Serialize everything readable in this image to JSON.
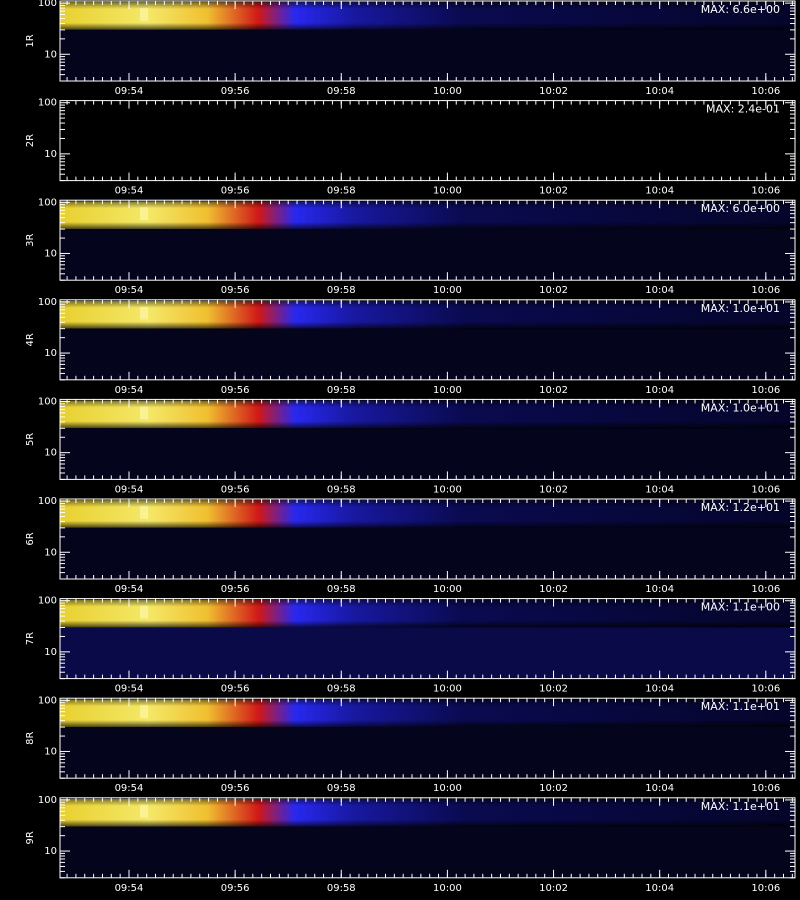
{
  "chart_data": [
    {
      "type": "spectrogram",
      "ylabel": "1R",
      "annotation": "MAX: 6.6e+00",
      "yscale": "log",
      "ylim": [
        3,
        110
      ],
      "yticks": [
        10,
        100
      ],
      "xlim": [
        592.7,
        606.55
      ],
      "xticks": [
        {
          "value": 594,
          "label": "09:54"
        },
        {
          "value": 596,
          "label": "09:56"
        },
        {
          "value": 598,
          "label": "09:58"
        },
        {
          "value": 600,
          "label": "10:00"
        },
        {
          "value": 602,
          "label": "10:02"
        },
        {
          "value": 604,
          "label": "10:04"
        },
        {
          "value": 606,
          "label": "10:06"
        }
      ]
    },
    {
      "type": "spectrogram",
      "ylabel": "2R",
      "annotation": "MAX: 2.4e-01",
      "yscale": "log",
      "ylim": [
        3,
        110
      ],
      "yticks": [
        10,
        100
      ],
      "xlim": [
        592.7,
        606.55
      ],
      "xticks": [
        {
          "value": 594,
          "label": "09:54"
        },
        {
          "value": 596,
          "label": "09:56"
        },
        {
          "value": 598,
          "label": "09:58"
        },
        {
          "value": 600,
          "label": "10:00"
        },
        {
          "value": 602,
          "label": "10:02"
        },
        {
          "value": 604,
          "label": "10:04"
        },
        {
          "value": 606,
          "label": "10:06"
        }
      ]
    },
    {
      "type": "spectrogram",
      "ylabel": "3R",
      "annotation": "MAX: 6.0e+00",
      "yscale": "log",
      "ylim": [
        3,
        110
      ],
      "yticks": [
        10,
        100
      ],
      "xlim": [
        592.7,
        606.55
      ],
      "xticks": [
        {
          "value": 594,
          "label": "09:54"
        },
        {
          "value": 596,
          "label": "09:56"
        },
        {
          "value": 598,
          "label": "09:58"
        },
        {
          "value": 600,
          "label": "10:00"
        },
        {
          "value": 602,
          "label": "10:02"
        },
        {
          "value": 604,
          "label": "10:04"
        },
        {
          "value": 606,
          "label": "10:06"
        }
      ]
    },
    {
      "type": "spectrogram",
      "ylabel": "4R",
      "annotation": "MAX: 1.0e+01",
      "yscale": "log",
      "ylim": [
        3,
        110
      ],
      "yticks": [
        10,
        100
      ],
      "xlim": [
        592.7,
        606.55
      ],
      "xticks": [
        {
          "value": 594,
          "label": "09:54"
        },
        {
          "value": 596,
          "label": "09:56"
        },
        {
          "value": 598,
          "label": "09:58"
        },
        {
          "value": 600,
          "label": "10:00"
        },
        {
          "value": 602,
          "label": "10:02"
        },
        {
          "value": 604,
          "label": "10:04"
        },
        {
          "value": 606,
          "label": "10:06"
        }
      ]
    },
    {
      "type": "spectrogram",
      "ylabel": "5R",
      "annotation": "MAX: 1.0e+01",
      "yscale": "log",
      "ylim": [
        3,
        110
      ],
      "yticks": [
        10,
        100
      ],
      "xlim": [
        592.7,
        606.55
      ],
      "xticks": [
        {
          "value": 594,
          "label": "09:54"
        },
        {
          "value": 596,
          "label": "09:56"
        },
        {
          "value": 598,
          "label": "09:58"
        },
        {
          "value": 600,
          "label": "10:00"
        },
        {
          "value": 602,
          "label": "10:02"
        },
        {
          "value": 604,
          "label": "10:04"
        },
        {
          "value": 606,
          "label": "10:06"
        }
      ]
    },
    {
      "type": "spectrogram",
      "ylabel": "6R",
      "annotation": "MAX: 1.2e+01",
      "yscale": "log",
      "ylim": [
        3,
        110
      ],
      "yticks": [
        10,
        100
      ],
      "xlim": [
        592.7,
        606.55
      ],
      "xticks": [
        {
          "value": 594,
          "label": "09:54"
        },
        {
          "value": 596,
          "label": "09:56"
        },
        {
          "value": 598,
          "label": "09:58"
        },
        {
          "value": 600,
          "label": "10:00"
        },
        {
          "value": 602,
          "label": "10:02"
        },
        {
          "value": 604,
          "label": "10:04"
        },
        {
          "value": 606,
          "label": "10:06"
        }
      ]
    },
    {
      "type": "spectrogram",
      "ylabel": "7R",
      "annotation": "MAX: 1.1e+00",
      "yscale": "log",
      "ylim": [
        3,
        110
      ],
      "yticks": [
        10,
        100
      ],
      "xlim": [
        592.7,
        606.55
      ],
      "xticks": [
        {
          "value": 594,
          "label": "09:54"
        },
        {
          "value": 596,
          "label": "09:56"
        },
        {
          "value": 598,
          "label": "09:58"
        },
        {
          "value": 600,
          "label": "10:00"
        },
        {
          "value": 602,
          "label": "10:02"
        },
        {
          "value": 604,
          "label": "10:04"
        },
        {
          "value": 606,
          "label": "10:06"
        }
      ]
    },
    {
      "type": "spectrogram",
      "ylabel": "8R",
      "annotation": "MAX: 1.1e+01",
      "yscale": "log",
      "ylim": [
        3,
        110
      ],
      "yticks": [
        10,
        100
      ],
      "xlim": [
        592.7,
        606.55
      ],
      "xticks": [
        {
          "value": 594,
          "label": "09:54"
        },
        {
          "value": 596,
          "label": "09:56"
        },
        {
          "value": 598,
          "label": "09:58"
        },
        {
          "value": 600,
          "label": "10:00"
        },
        {
          "value": 602,
          "label": "10:02"
        },
        {
          "value": 604,
          "label": "10:04"
        },
        {
          "value": 606,
          "label": "10:06"
        }
      ]
    },
    {
      "type": "spectrogram",
      "ylabel": "9R",
      "annotation": "MAX: 1.1e+01",
      "yscale": "log",
      "ylim": [
        3,
        110
      ],
      "yticks": [
        10,
        100
      ],
      "xlim": [
        592.7,
        606.55
      ],
      "xticks": [
        {
          "value": 594,
          "label": "09:54"
        },
        {
          "value": 596,
          "label": "09:56"
        },
        {
          "value": 598,
          "label": "09:58"
        },
        {
          "value": 600,
          "label": "10:00"
        },
        {
          "value": 602,
          "label": "10:02"
        },
        {
          "value": 604,
          "label": "10:04"
        },
        {
          "value": 606,
          "label": "10:06"
        }
      ]
    }
  ]
}
